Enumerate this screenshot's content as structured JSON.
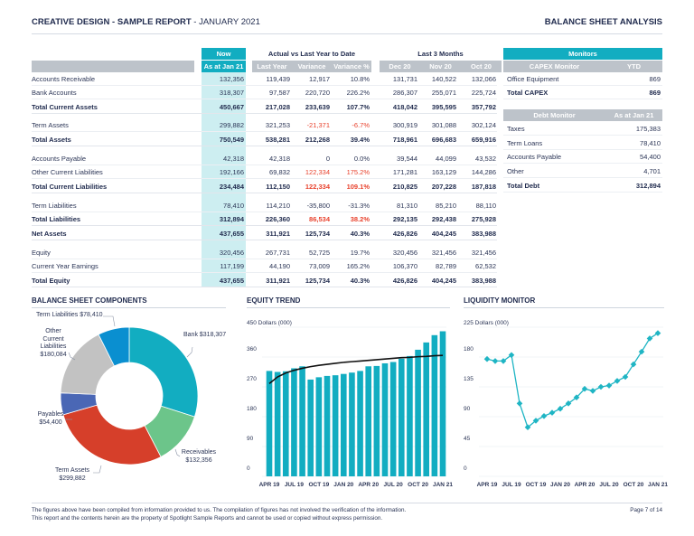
{
  "header": {
    "title_bold": "CREATIVE DESIGN - SAMPLE REPORT",
    "title_rest": " - JANUARY 2021",
    "right": "BALANCE SHEET ANALYSIS"
  },
  "table": {
    "groups": {
      "now": "Now",
      "actual": "Actual vs Last Year to Date",
      "last3": "Last 3 Months"
    },
    "columns": [
      "As at Jan 21",
      "Last Year",
      "Variance",
      "Variance %",
      "Dec 20",
      "Nov 20",
      "Oct 20"
    ],
    "rows": [
      {
        "label": "Accounts Receivable",
        "bold": false,
        "cells": [
          "132,356",
          "119,439",
          "12,917",
          "10.8%",
          "131,731",
          "140,522",
          "132,066"
        ],
        "red": []
      },
      {
        "label": "Bank Accounts",
        "bold": false,
        "cells": [
          "318,307",
          "97,587",
          "220,720",
          "226.2%",
          "286,307",
          "255,071",
          "225,724"
        ],
        "red": []
      },
      {
        "label": "Total Current Assets",
        "bold": true,
        "cells": [
          "450,667",
          "217,028",
          "233,639",
          "107.7%",
          "418,042",
          "395,595",
          "357,792"
        ],
        "red": []
      },
      {
        "label": "Term Assets",
        "bold": false,
        "cells": [
          "299,882",
          "321,253",
          "-21,371",
          "-6.7%",
          "300,919",
          "301,088",
          "302,124"
        ],
        "red": [
          2,
          3
        ]
      },
      {
        "label": "Total Assets",
        "bold": true,
        "cells": [
          "750,549",
          "538,281",
          "212,268",
          "39.4%",
          "718,961",
          "696,683",
          "659,916"
        ],
        "red": []
      },
      {
        "label": "Accounts Payable",
        "bold": false,
        "cells": [
          "42,318",
          "42,318",
          "0",
          "0.0%",
          "39,544",
          "44,099",
          "43,532"
        ],
        "red": []
      },
      {
        "label": "Other Current Liabilities",
        "bold": false,
        "cells": [
          "192,166",
          "69,832",
          "122,334",
          "175.2%",
          "171,281",
          "163,129",
          "144,286"
        ],
        "red": [
          2,
          3
        ]
      },
      {
        "label": "Total Current Liabilities",
        "bold": true,
        "cells": [
          "234,484",
          "112,150",
          "122,334",
          "109.1%",
          "210,825",
          "207,228",
          "187,818"
        ],
        "red": [
          2,
          3
        ]
      },
      {
        "label": "Term Liabilities",
        "bold": false,
        "cells": [
          "78,410",
          "114,210",
          "-35,800",
          "-31.3%",
          "81,310",
          "85,210",
          "88,110"
        ],
        "red": []
      },
      {
        "label": "Total Liabilities",
        "bold": true,
        "cells": [
          "312,894",
          "226,360",
          "86,534",
          "38.2%",
          "292,135",
          "292,438",
          "275,928"
        ],
        "red": [
          2,
          3
        ]
      },
      {
        "label": "Net Assets",
        "bold": true,
        "cells": [
          "437,655",
          "311,921",
          "125,734",
          "40.3%",
          "426,826",
          "404,245",
          "383,988"
        ],
        "red": []
      },
      {
        "label": "Equity",
        "bold": false,
        "cells": [
          "320,456",
          "267,731",
          "52,725",
          "19.7%",
          "320,456",
          "321,456",
          "321,456"
        ],
        "red": []
      },
      {
        "label": "Current Year Earnings",
        "bold": false,
        "cells": [
          "117,199",
          "44,190",
          "73,009",
          "165.2%",
          "106,370",
          "82,789",
          "62,532"
        ],
        "red": []
      },
      {
        "label": "Total Equity",
        "bold": true,
        "cells": [
          "437,655",
          "311,921",
          "125,734",
          "40.3%",
          "426,826",
          "404,245",
          "383,988"
        ],
        "red": []
      }
    ]
  },
  "monitors": {
    "title": "Monitors",
    "capex": {
      "header": "CAPEX Monitor",
      "col": "YTD",
      "rows": [
        {
          "label": "Office Equipment",
          "value": "869",
          "bold": false
        },
        {
          "label": "Total CAPEX",
          "value": "869",
          "bold": true
        }
      ]
    },
    "debt": {
      "header": "Debt Monitor",
      "col": "As at Jan 21",
      "rows": [
        {
          "label": "Taxes",
          "value": "175,383",
          "bold": false
        },
        {
          "label": "Term Loans",
          "value": "78,410",
          "bold": false
        },
        {
          "label": "Accounts Payable",
          "value": "54,400",
          "bold": false
        },
        {
          "label": "Other",
          "value": "4,701",
          "bold": false
        },
        {
          "label": "Total Debt",
          "value": "312,894",
          "bold": true
        }
      ]
    }
  },
  "chart_data": [
    {
      "type": "pie",
      "title": "BALANCE SHEET COMPONENTS",
      "donut": true,
      "slices": [
        {
          "label": "Bank",
          "value": 318307,
          "text": "Bank $318,307",
          "color": "#12adc1"
        },
        {
          "label": "Receivables",
          "value": 132356,
          "text": "Receivables $132,356",
          "color": "#6cc58a"
        },
        {
          "label": "Term Assets",
          "value": 299882,
          "text": "Term Assets $299,882",
          "color": "#d63f2a"
        },
        {
          "label": "Payables",
          "value": 54400,
          "text": "Payables $54,400",
          "color": "#4a67b5"
        },
        {
          "label": "Other Current Liabilities",
          "value": 180084,
          "text": "Other Current Liabilities $180,084",
          "color": "#c2c2c2"
        },
        {
          "label": "Term Liabilities",
          "value": 78410,
          "text": "Term Liabilities $78,410",
          "color": "#0a8fd0"
        }
      ]
    },
    {
      "type": "bar",
      "title": "EQUITY TREND",
      "ylabel": "Dollars (000)",
      "ylim": [
        0,
        450
      ],
      "yticks": [
        0,
        90,
        180,
        270,
        360,
        450
      ],
      "grid": true,
      "months": [
        "Apr 19",
        "May 19",
        "Jun 19",
        "Jul 19",
        "Aug 19",
        "Sep 19",
        "Oct 19",
        "Nov 19",
        "Dec 19",
        "Jan 20",
        "Feb 20",
        "Mar 20",
        "Apr 20",
        "May 20",
        "Jun 20",
        "Jul 20",
        "Aug 20",
        "Sep 20",
        "Oct 20",
        "Nov 20",
        "Dec 20",
        "Jan 21"
      ],
      "xtick_labels": [
        "APR 19",
        "JUL 19",
        "OCT 19",
        "JAN 20",
        "APR 20",
        "JUL 20",
        "OCT 20",
        "JAN 21"
      ],
      "values": [
        318,
        315,
        317,
        326,
        332,
        292,
        299,
        303,
        305,
        309,
        313,
        318,
        332,
        333,
        341,
        345,
        355,
        363,
        382,
        404,
        426,
        437.7
      ],
      "trend": [
        280,
        300,
        312,
        320,
        326,
        331,
        335,
        338,
        341,
        344,
        346,
        348,
        350,
        352,
        354,
        356,
        358,
        359,
        361,
        362,
        364,
        365
      ],
      "bar_color": "#12adc1",
      "trend_color": "#111111"
    },
    {
      "type": "line",
      "title": "LIQUIDITY MONITOR",
      "ylabel": "Dollars (000)",
      "ylim": [
        0,
        225
      ],
      "yticks": [
        0,
        45,
        90,
        135,
        180,
        225
      ],
      "grid": true,
      "months": [
        "Apr 19",
        "May 19",
        "Jun 19",
        "Jul 19",
        "Aug 19",
        "Sep 19",
        "Oct 19",
        "Nov 19",
        "Dec 19",
        "Jan 20",
        "Feb 20",
        "Mar 20",
        "Apr 20",
        "May 20",
        "Jun 20",
        "Jul 20",
        "Aug 20",
        "Sep 20",
        "Oct 20",
        "Nov 20",
        "Dec 20",
        "Jan 21"
      ],
      "xtick_labels": [
        "APR 19",
        "JUL 19",
        "OCT 19",
        "JAN 20",
        "APR 20",
        "JUL 20",
        "OCT 20",
        "JAN 21"
      ],
      "values": [
        177,
        174,
        174,
        183,
        110,
        74,
        84,
        91,
        96,
        102,
        110,
        119,
        132,
        129,
        135,
        137,
        144,
        150,
        169,
        188,
        208,
        216
      ],
      "color": "#1fb5c4"
    }
  ],
  "footer": {
    "line1": "The figures above have been compiled from information provided to us. The compilation of figures has not involved the verification of the information.",
    "line2": "This report and the contents herein are the property of Spotlight Sample Reports and cannot be used or copied without express permission.",
    "page": "Page 7 of 14"
  }
}
